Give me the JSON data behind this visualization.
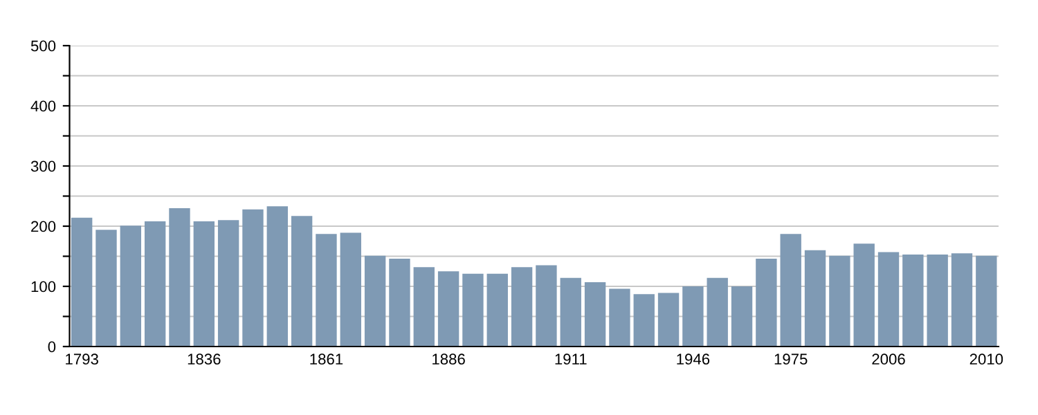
{
  "chart_data": {
    "type": "bar",
    "categories": [
      "1793",
      null,
      null,
      null,
      null,
      "1836",
      null,
      null,
      null,
      null,
      "1861",
      null,
      null,
      null,
      null,
      "1886",
      null,
      null,
      null,
      null,
      "1911",
      null,
      null,
      null,
      null,
      "1946",
      null,
      null,
      null,
      "1975",
      null,
      null,
      null,
      "2006",
      null,
      null,
      null,
      "2010"
    ],
    "values": [
      214,
      194,
      201,
      208,
      230,
      208,
      210,
      228,
      233,
      217,
      187,
      189,
      151,
      146,
      132,
      125,
      121,
      121,
      132,
      135,
      114,
      107,
      96,
      87,
      89,
      100,
      114,
      100,
      146,
      187,
      160,
      151,
      171,
      157,
      153,
      153,
      155,
      151
    ],
    "color": "#7f9ab4",
    "ylim": [
      0,
      500
    ],
    "yticks": [
      0,
      {
        "value": 50,
        "label": null
      },
      100,
      {
        "value": 150,
        "label": null
      },
      200,
      {
        "value": 250,
        "label": null
      },
      300,
      {
        "value": 350,
        "label": null
      },
      400,
      {
        "value": 450,
        "label": null
      },
      500
    ],
    "grid": "y"
  }
}
